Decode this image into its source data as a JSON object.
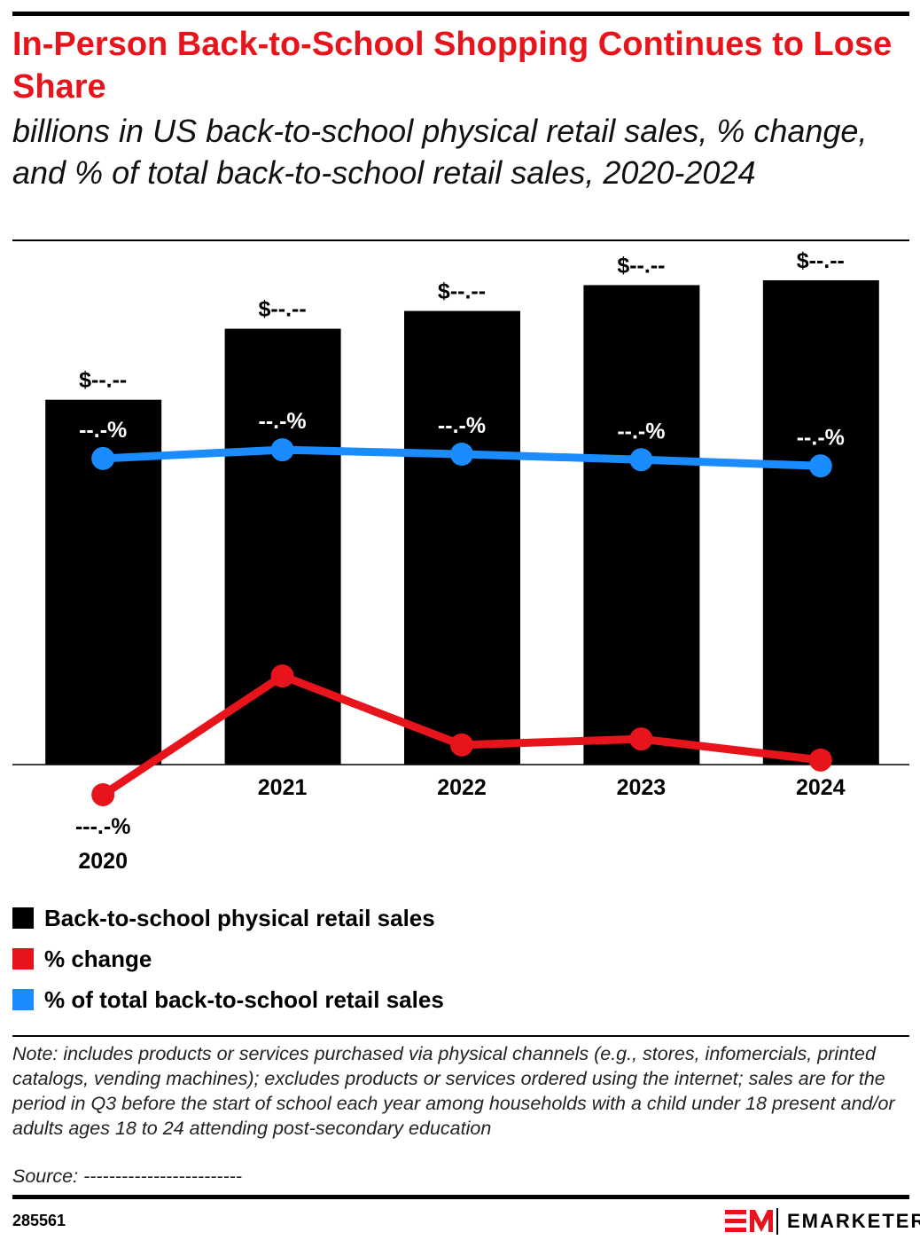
{
  "chart_data": {
    "type": "bar",
    "title": "In-Person Back-to-School Shopping Continues to Lose Share",
    "subtitle": "billions in US back-to-school physical retail sales, % change, and % of total back-to-school retail sales, 2020-2024",
    "categories": [
      "2020",
      "2021",
      "2022",
      "2023",
      "2024"
    ],
    "series": [
      {
        "name": "Back-to-school physical retail sales",
        "type": "bar",
        "color": "#000000",
        "values": [
          22.6,
          27.0,
          28.1,
          29.7,
          30.0
        ],
        "value_labels": [
          "$--.--",
          "$--.--",
          "$--.--",
          "$--.--",
          "$--.--"
        ]
      },
      {
        "name": "% change",
        "type": "line",
        "color": "#e8141c",
        "values": [
          -6.6,
          19.4,
          4.3,
          5.6,
          1.0
        ],
        "value_labels": [
          "---.-%",
          "--.-%",
          "-.-%",
          "-.-%",
          "-.-%"
        ]
      },
      {
        "name": "% of total back-to-school retail sales",
        "type": "line",
        "color": "#1a8cff",
        "values": [
          49.3,
          50.7,
          50.0,
          49.1,
          48.1
        ],
        "value_labels": [
          "--.-%",
          "--.-%",
          "--.-%",
          "--.-%",
          "--.-%"
        ]
      }
    ]
  },
  "note": "Note: includes products or services purchased via physical channels (e.g., stores, infomercials, printed catalogs, vending machines); excludes products or services ordered using the internet; sales are for the period in Q3 before the start of school each year among households with a child under 18 present and/or adults ages 18 to 24 attending post-secondary education",
  "source": "Source: -------------------------",
  "chart_id": "285561",
  "brand": "EMARKETER"
}
